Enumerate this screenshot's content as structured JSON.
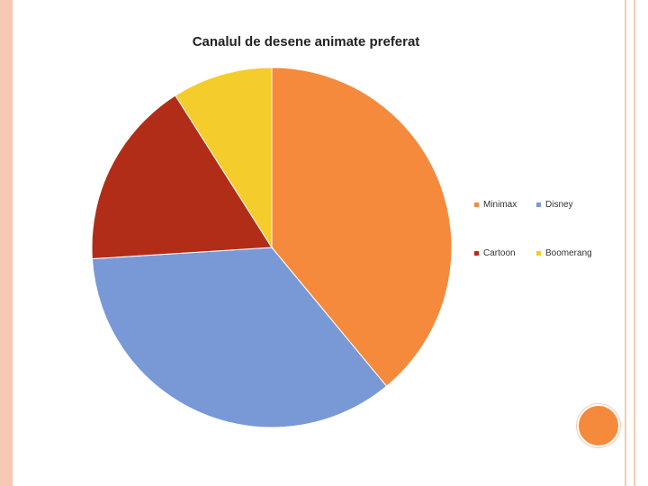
{
  "slide": {
    "accent_color": "#f7c9b3",
    "decoration_color": "#f58a3c"
  },
  "chart_data": {
    "type": "pie",
    "title": "Canalul de desene animate preferat",
    "categories": [
      "Minimax",
      "Disney",
      "Cartoon",
      "Boomerang"
    ],
    "values": [
      39,
      35,
      17,
      9
    ],
    "colors": [
      "#f58a3c",
      "#7899d6",
      "#b22d18",
      "#f4cd2d"
    ],
    "legend_position": "right"
  }
}
